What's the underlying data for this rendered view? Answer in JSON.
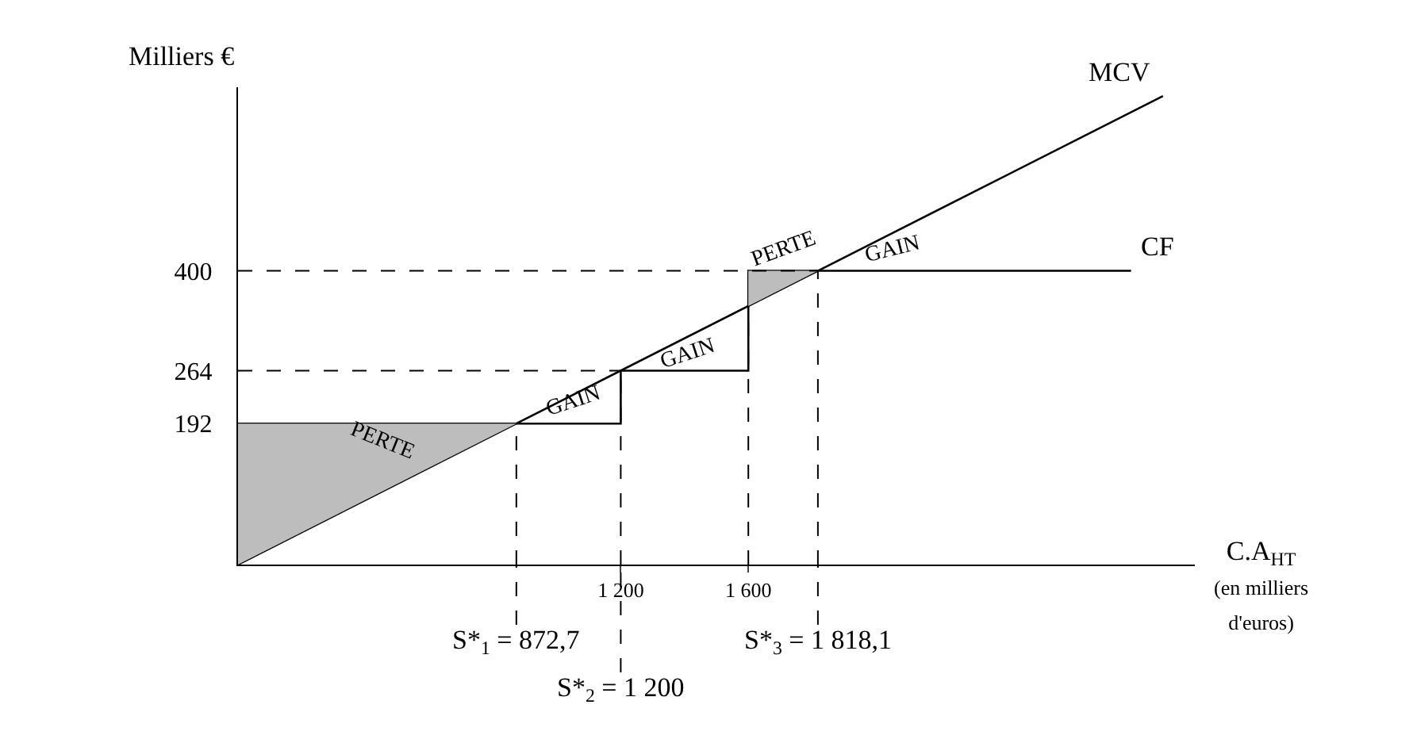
{
  "chart_data": {
    "type": "line",
    "xlabel": "C.A$_{HT}$ (en milliers d'euros)",
    "ylabel": "Milliers €",
    "xlim": [
      0,
      3000
    ],
    "ylim": [
      0,
      650
    ],
    "xticks": [
      {
        "value": 1200,
        "label": "1 200"
      },
      {
        "value": 1600,
        "label": "1 600"
      }
    ],
    "yticks": [
      192,
      264,
      400
    ],
    "legend": false,
    "marker": "none",
    "line_style": "solid",
    "series": [
      {
        "name": "MCV",
        "color": "#000000",
        "x": [
          0,
          872.7,
          1818.1,
          2900
        ],
        "values": [
          0,
          192,
          400,
          638
        ]
      },
      {
        "name": "CF",
        "color": "#000000",
        "x": [
          0,
          1200,
          1200,
          1600,
          1600,
          2800
        ],
        "values": [
          192,
          192,
          264,
          264,
          400,
          400
        ]
      },
      {
        "type": "area",
        "color": "#bdbdbd",
        "x": [
          0,
          872.7
        ],
        "values": [
          192,
          192
        ]
      },
      {
        "type": "area",
        "color": "#bdbdbd",
        "x": [
          1600,
          1818.1
        ],
        "values": [
          400,
          400
        ]
      }
    ],
    "ref_lines": [
      {
        "axis": "y",
        "value": 264,
        "line_style": "dashed"
      },
      {
        "axis": "y",
        "value": 400,
        "line_style": "dashed"
      },
      {
        "axis": "x",
        "value": 872.7,
        "line_style": "dashed",
        "label": "S*$_{1}$ = 872,7"
      },
      {
        "axis": "x",
        "value": 1200,
        "line_style": "dashed",
        "label": "S*$_{2}$ = 1 200"
      },
      {
        "axis": "x",
        "value": 1600,
        "line_style": "dashed"
      },
      {
        "axis": "x",
        "value": 1818.1,
        "line_style": "dashed",
        "label": "S*$_{3}$ = 1 818,1"
      }
    ],
    "annotations": [
      "PERTE",
      "GAIN",
      "GAIN",
      "PERTE",
      "GAIN"
    ]
  }
}
